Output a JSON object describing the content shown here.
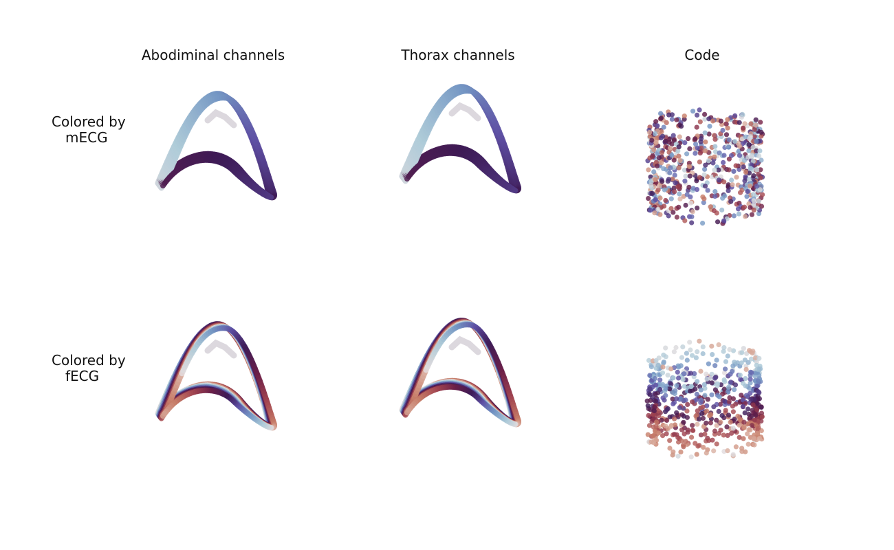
{
  "figure": {
    "column_titles": [
      "Abodiminal channels",
      "Thorax channels",
      "Code"
    ],
    "row_labels": [
      {
        "line1": "Colored by",
        "line2": "mECG"
      },
      {
        "line1": "Colored by",
        "line2": "fECG"
      }
    ]
  },
  "colormap": [
    "#e3dcde",
    "#aecbd8",
    "#7395c3",
    "#5e4fa3",
    "#3e1b56",
    "#6a1f48",
    "#a14450",
    "#c77d68",
    "#dcb5a8"
  ],
  "chart_data": [
    {
      "type": "3d-trajectory",
      "title": "Abodiminal channels",
      "row": "Colored by mECG",
      "axes_visible": false,
      "grid": false
    },
    {
      "type": "3d-trajectory",
      "title": "Thorax channels",
      "row": "Colored by mECG",
      "axes_visible": false,
      "grid": false
    },
    {
      "type": "3d-scatter",
      "title": "Code",
      "row": "Colored by mECG",
      "axes_visible": false,
      "grid": false
    },
    {
      "type": "3d-trajectory",
      "title": "Abodiminal channels",
      "row": "Colored by fECG",
      "axes_visible": false,
      "grid": false
    },
    {
      "type": "3d-trajectory",
      "title": "Thorax channels",
      "row": "Colored by fECG",
      "axes_visible": false,
      "grid": false
    },
    {
      "type": "3d-scatter",
      "title": "Code",
      "row": "Colored by fECG",
      "axes_visible": false,
      "grid": false
    }
  ]
}
